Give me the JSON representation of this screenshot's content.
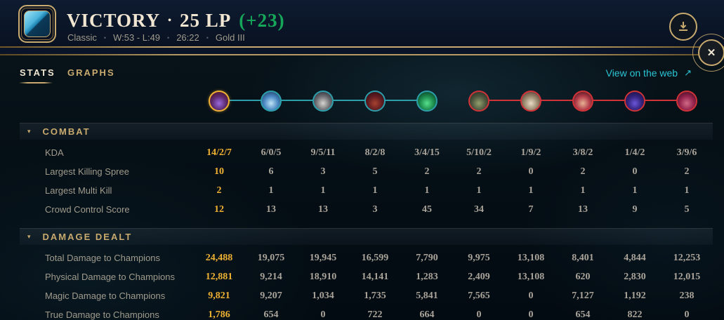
{
  "glyphs": {
    "bullet": "•",
    "collapse": "▾",
    "close": "✕",
    "link_arrow": "↗"
  },
  "header": {
    "result": "VICTORY",
    "lp": "25 LP",
    "lp_change": "(+23)",
    "meta": {
      "queue": "Classic",
      "record": "W:53 - L:49",
      "duration": "26:22",
      "rank": "Gold III"
    }
  },
  "tabs": {
    "stats": "STATS",
    "graphs": "GRAPHS"
  },
  "link": {
    "label": "View on the web"
  },
  "colors": {
    "gold_accent": "#c8aa6e",
    "player_highlight": "#f0b232",
    "text_muted": "#a09b8c",
    "victory_green": "#16a65a",
    "link_teal": "#2bc4d4",
    "blue_team_line": "#2d9fab",
    "red_team_line": "#cf3338"
  },
  "champions": [
    {
      "team": "blue",
      "is_player": true,
      "ring": "#f0b232",
      "art": [
        "#9a6ae0",
        "#5b2a6e",
        "#4a0d16"
      ]
    },
    {
      "team": "blue",
      "is_player": false,
      "ring": "#2d9fab",
      "art": [
        "#bfe4f5",
        "#4a87c2",
        "#16324f"
      ]
    },
    {
      "team": "blue",
      "is_player": false,
      "ring": "#2d9fab",
      "art": [
        "#d6d4d0",
        "#6e6f74",
        "#1c1d26"
      ]
    },
    {
      "team": "blue",
      "is_player": false,
      "ring": "#2d9fab",
      "art": [
        "#a8422f",
        "#611c22",
        "#1f0c10"
      ]
    },
    {
      "team": "blue",
      "is_player": false,
      "ring": "#2d9fab",
      "art": [
        "#55e08c",
        "#1c8a4c",
        "#062a1b"
      ]
    },
    {
      "team": "red",
      "is_player": false,
      "ring": "#cf3338",
      "art": [
        "#93a06c",
        "#4d563f",
        "#20251b"
      ]
    },
    {
      "team": "red",
      "is_player": false,
      "ring": "#cf3338",
      "art": [
        "#e9dcc6",
        "#97866c",
        "#4c2a27"
      ]
    },
    {
      "team": "red",
      "is_player": false,
      "ring": "#cf3338",
      "art": [
        "#e5b294",
        "#b43c4a",
        "#2c1016"
      ]
    },
    {
      "team": "red",
      "is_player": false,
      "ring": "#cf3338",
      "art": [
        "#6a55d8",
        "#33237c",
        "#140f33"
      ]
    },
    {
      "team": "red",
      "is_player": false,
      "ring": "#cf3338",
      "art": [
        "#d06a86",
        "#95234d",
        "#2a0d1a"
      ]
    }
  ],
  "stats_table": {
    "sections": [
      {
        "title": "COMBAT",
        "rows": [
          {
            "label": "KDA",
            "values": [
              "14/2/7",
              "6/0/5",
              "9/5/11",
              "8/2/8",
              "3/4/15",
              "5/10/2",
              "1/9/2",
              "3/8/2",
              "1/4/2",
              "3/9/6"
            ]
          },
          {
            "label": "Largest Killing Spree",
            "values": [
              "10",
              "6",
              "3",
              "5",
              "2",
              "2",
              "0",
              "2",
              "0",
              "2"
            ]
          },
          {
            "label": "Largest Multi Kill",
            "values": [
              "2",
              "1",
              "1",
              "1",
              "1",
              "1",
              "1",
              "1",
              "1",
              "1"
            ]
          },
          {
            "label": "Crowd Control Score",
            "values": [
              "12",
              "13",
              "13",
              "3",
              "45",
              "34",
              "7",
              "13",
              "9",
              "5"
            ]
          }
        ]
      },
      {
        "title": "DAMAGE DEALT",
        "rows": [
          {
            "label": "Total Damage to Champions",
            "values": [
              "24,488",
              "19,075",
              "19,945",
              "16,599",
              "7,790",
              "9,975",
              "13,108",
              "8,401",
              "4,844",
              "12,253"
            ]
          },
          {
            "label": "Physical Damage to Champions",
            "values": [
              "12,881",
              "9,214",
              "18,910",
              "14,141",
              "1,283",
              "2,409",
              "13,108",
              "620",
              "2,830",
              "12,015"
            ]
          },
          {
            "label": "Magic Damage to Champions",
            "values": [
              "9,821",
              "9,207",
              "1,034",
              "1,735",
              "5,841",
              "7,565",
              "0",
              "7,127",
              "1,192",
              "238"
            ]
          },
          {
            "label": "True Damage to Champions",
            "values": [
              "1,786",
              "654",
              "0",
              "722",
              "664",
              "0",
              "0",
              "654",
              "822",
              "0"
            ]
          }
        ]
      }
    ]
  }
}
